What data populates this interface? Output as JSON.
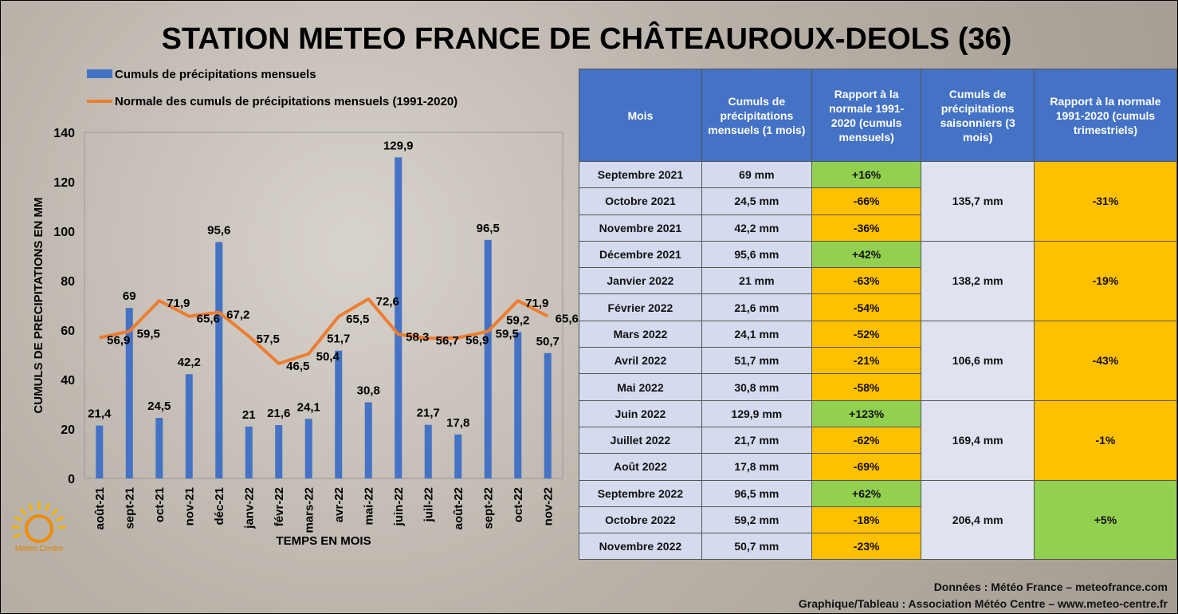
{
  "chart_data": {
    "type": "bar",
    "title": "STATION METEO FRANCE DE CHÂTEAUROUX-DEOLS (36)",
    "y_label": "CUMULS DE PRECIPITATIONS EN MM",
    "x_label": "TEMPS EN MOIS",
    "categories": [
      "août-21",
      "sept-21",
      "oct-21",
      "nov-21",
      "déc-21",
      "janv-22",
      "févr-22",
      "mars-22",
      "avr-22",
      "mai-22",
      "juin-22",
      "juil-22",
      "août-22",
      "sept-22",
      "oct-22",
      "nov-22"
    ],
    "series": [
      {
        "name": "Cumuls de précipitations mensuels",
        "type": "bar",
        "color": "#4472c4",
        "values": [
          21.4,
          69,
          24.5,
          42.2,
          95.6,
          21,
          21.6,
          24.1,
          51.7,
          30.8,
          129.9,
          21.7,
          17.8,
          96.5,
          59.2,
          50.7
        ],
        "value_labels": [
          "21,4",
          "69",
          "24,5",
          "42,2",
          "95,6",
          "21",
          "21,6",
          "24,1",
          "51,7",
          "30,8",
          "129,9",
          "21,7",
          "17,8",
          "96,5",
          "59,2",
          "50,7"
        ]
      },
      {
        "name": "Normale des cumuls de précipitations mensuels (1991-2020)",
        "type": "line",
        "color": "#ed7d31",
        "values": [
          56.9,
          59.5,
          71.9,
          65.6,
          67.2,
          57.5,
          46.5,
          50.4,
          65.5,
          72.6,
          58.3,
          56.7,
          56.9,
          59.5,
          71.9,
          65.6
        ],
        "value_labels": [
          "56,9",
          "59,5",
          "71,9",
          "65,6",
          "67,2",
          "57,5",
          "46,5",
          "50,4",
          "65,5",
          "72,6",
          "58,3",
          "56,7",
          "56,9",
          "59,5",
          "71,9",
          "65,6"
        ]
      }
    ],
    "ylim": [
      0,
      140
    ],
    "yticks": [
      0,
      20,
      40,
      60,
      80,
      100,
      120,
      140
    ],
    "grid": false,
    "legend": "top-left"
  },
  "logo": "Météo Centre",
  "table": {
    "headers": [
      "Mois",
      "Cumuls de précipitations mensuels (1 mois)",
      "Rapport à la normale 1991-2020 (cumuls mensuels)",
      "Cumuls de précipitations saisonniers (3 mois)",
      "Rapport à la normale 1991-2020 (cumuls trimestriels)"
    ],
    "rows": [
      [
        "Septembre 2021",
        "69 mm",
        "+16%"
      ],
      [
        "Octobre 2021",
        "24,5 mm",
        "-66%"
      ],
      [
        "Novembre 2021",
        "42,2 mm",
        "-36%"
      ],
      [
        "Décembre 2021",
        "95,6 mm",
        "+42%"
      ],
      [
        "Janvier 2022",
        "21 mm",
        "-63%"
      ],
      [
        "Février 2022",
        "21,6 mm",
        "-54%"
      ],
      [
        "Mars 2022",
        "24,1 mm",
        "-52%"
      ],
      [
        "Avril 2022",
        "51,7 mm",
        "-21%"
      ],
      [
        "Mai 2022",
        "30,8 mm",
        "-58%"
      ],
      [
        "Juin 2022",
        "129,9 mm",
        "+123%"
      ],
      [
        "Juillet 2022",
        "21,7 mm",
        "-62%"
      ],
      [
        "Août 2022",
        "17,8 mm",
        "-69%"
      ],
      [
        "Septembre 2022",
        "96,5 mm",
        "+62%"
      ],
      [
        "Octobre 2022",
        "59,2 mm",
        "-18%"
      ],
      [
        "Novembre 2022",
        "50,7 mm",
        "-23%"
      ]
    ],
    "seasons": [
      [
        "135,7 mm",
        "-31%"
      ],
      [
        "138,2 mm",
        "-19%"
      ],
      [
        "106,6 mm",
        "-43%"
      ],
      [
        "169,4 mm",
        "-1%"
      ],
      [
        "206,4 mm",
        "+5%"
      ]
    ]
  },
  "footer": [
    "Données : Météo France – meteofrance.com",
    "Graphique/Tableau : Association Météo Centre – www.meteo-centre.fr"
  ]
}
